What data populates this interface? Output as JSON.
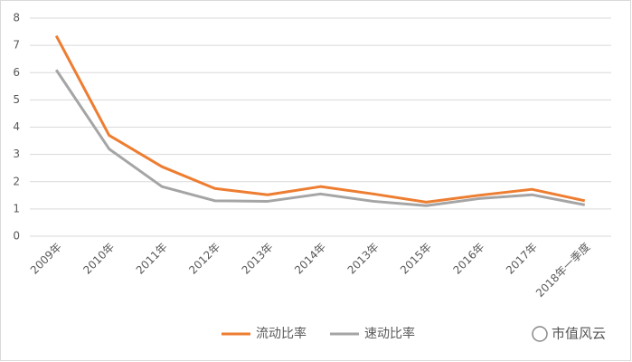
{
  "chart_data": {
    "type": "line",
    "categories": [
      "2009年",
      "2010年",
      "2011年",
      "2012年",
      "2013年",
      "2014年",
      "2013年",
      "2015年",
      "2016年",
      "2017年",
      "2018年一季度"
    ],
    "series": [
      {
        "name": "流动比率",
        "color": "#ed7d31",
        "values": [
          7.35,
          3.7,
          2.55,
          1.75,
          1.52,
          1.82,
          1.55,
          1.25,
          1.5,
          1.72,
          1.3
        ]
      },
      {
        "name": "速动比率",
        "color": "#a5a5a5",
        "values": [
          6.1,
          3.2,
          1.82,
          1.3,
          1.28,
          1.55,
          1.28,
          1.12,
          1.38,
          1.52,
          1.15
        ]
      }
    ],
    "ylim": [
      0,
      8
    ],
    "yticks": [
      0,
      1,
      2,
      3,
      4,
      5,
      6,
      7,
      8
    ],
    "grid": true,
    "legend": "bottom",
    "watermark": "市值风云"
  }
}
